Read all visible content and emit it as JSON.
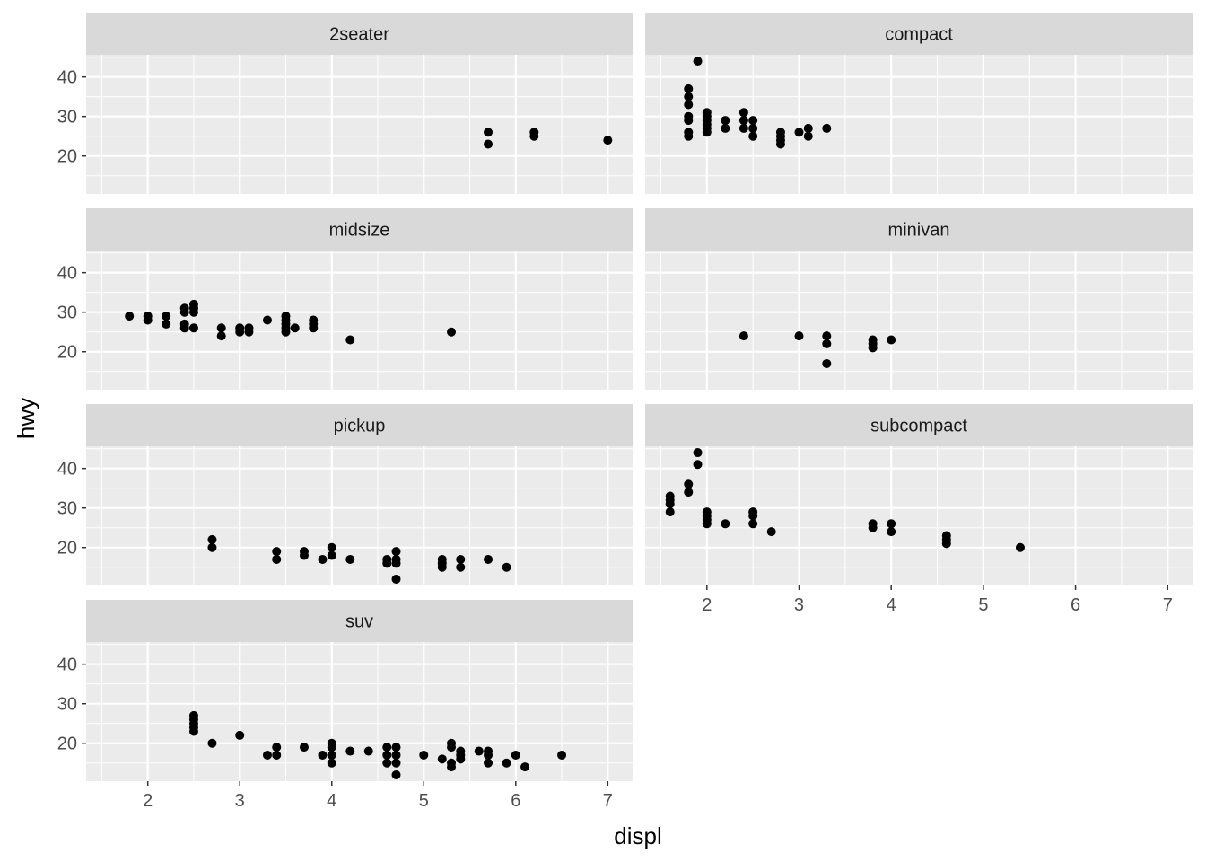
{
  "chart_data": {
    "type": "scatter",
    "xlabel": "displ",
    "ylabel": "hwy",
    "xlim": [
      1.33,
      7.27
    ],
    "ylim": [
      10.4,
      45.6
    ],
    "x_ticks": [
      2,
      3,
      4,
      5,
      6,
      7
    ],
    "y_ticks": [
      20,
      30,
      40
    ],
    "grid": true,
    "colors": {
      "panel_background": "#ebebeb",
      "strip_background": "#d9d9d9",
      "grid": "#ffffff",
      "point": "#000000"
    },
    "facets": [
      {
        "name": "2seater",
        "points": [
          [
            5.7,
            26
          ],
          [
            5.7,
            23
          ],
          [
            6.2,
            26
          ],
          [
            6.2,
            25
          ],
          [
            7.0,
            24
          ]
        ]
      },
      {
        "name": "compact",
        "points": [
          [
            1.8,
            37
          ],
          [
            1.8,
            35
          ],
          [
            1.8,
            33
          ],
          [
            1.8,
            30
          ],
          [
            1.8,
            29
          ],
          [
            1.8,
            26
          ],
          [
            1.8,
            25
          ],
          [
            1.9,
            44
          ],
          [
            2.0,
            31
          ],
          [
            2.0,
            30
          ],
          [
            2.0,
            29
          ],
          [
            2.0,
            28
          ],
          [
            2.0,
            27
          ],
          [
            2.0,
            26
          ],
          [
            2.2,
            29
          ],
          [
            2.2,
            27
          ],
          [
            2.4,
            31
          ],
          [
            2.4,
            29
          ],
          [
            2.4,
            27
          ],
          [
            2.5,
            29
          ],
          [
            2.5,
            27
          ],
          [
            2.5,
            25
          ],
          [
            2.8,
            26
          ],
          [
            2.8,
            25
          ],
          [
            2.8,
            24
          ],
          [
            2.8,
            23
          ],
          [
            3.0,
            26
          ],
          [
            3.1,
            27
          ],
          [
            3.1,
            25
          ],
          [
            3.3,
            27
          ]
        ]
      },
      {
        "name": "midsize",
        "points": [
          [
            1.8,
            29
          ],
          [
            2.0,
            29
          ],
          [
            2.0,
            28
          ],
          [
            2.2,
            29
          ],
          [
            2.2,
            27
          ],
          [
            2.4,
            31
          ],
          [
            2.4,
            30
          ],
          [
            2.4,
            27
          ],
          [
            2.4,
            26
          ],
          [
            2.5,
            32
          ],
          [
            2.5,
            31
          ],
          [
            2.5,
            30
          ],
          [
            2.5,
            26
          ],
          [
            2.8,
            26
          ],
          [
            2.8,
            24
          ],
          [
            3.0,
            26
          ],
          [
            3.0,
            25
          ],
          [
            3.1,
            26
          ],
          [
            3.1,
            25
          ],
          [
            3.3,
            28
          ],
          [
            3.5,
            29
          ],
          [
            3.5,
            28
          ],
          [
            3.5,
            27
          ],
          [
            3.5,
            26
          ],
          [
            3.5,
            25
          ],
          [
            3.6,
            26
          ],
          [
            3.8,
            28
          ],
          [
            3.8,
            27
          ],
          [
            3.8,
            26
          ],
          [
            4.2,
            23
          ],
          [
            5.3,
            25
          ]
        ]
      },
      {
        "name": "minivan",
        "points": [
          [
            2.4,
            24
          ],
          [
            3.0,
            24
          ],
          [
            3.3,
            24
          ],
          [
            3.3,
            22
          ],
          [
            3.3,
            17
          ],
          [
            3.8,
            23
          ],
          [
            3.8,
            22
          ],
          [
            3.8,
            21
          ],
          [
            4.0,
            23
          ]
        ]
      },
      {
        "name": "pickup",
        "points": [
          [
            2.7,
            22
          ],
          [
            2.7,
            20
          ],
          [
            3.4,
            19
          ],
          [
            3.4,
            17
          ],
          [
            3.7,
            19
          ],
          [
            3.7,
            18
          ],
          [
            3.9,
            17
          ],
          [
            4.0,
            20
          ],
          [
            4.0,
            18
          ],
          [
            4.2,
            17
          ],
          [
            4.6,
            17
          ],
          [
            4.6,
            16
          ],
          [
            4.7,
            19
          ],
          [
            4.7,
            17
          ],
          [
            4.7,
            16
          ],
          [
            4.7,
            12
          ],
          [
            5.2,
            17
          ],
          [
            5.2,
            16
          ],
          [
            5.2,
            15
          ],
          [
            5.4,
            17
          ],
          [
            5.4,
            15
          ],
          [
            5.7,
            17
          ],
          [
            5.9,
            15
          ]
        ]
      },
      {
        "name": "subcompact",
        "points": [
          [
            1.6,
            33
          ],
          [
            1.6,
            32
          ],
          [
            1.6,
            31
          ],
          [
            1.6,
            29
          ],
          [
            1.8,
            36
          ],
          [
            1.8,
            34
          ],
          [
            1.9,
            44
          ],
          [
            1.9,
            41
          ],
          [
            2.0,
            29
          ],
          [
            2.0,
            28
          ],
          [
            2.0,
            27
          ],
          [
            2.0,
            26
          ],
          [
            2.2,
            26
          ],
          [
            2.5,
            29
          ],
          [
            2.5,
            28
          ],
          [
            2.5,
            26
          ],
          [
            2.7,
            24
          ],
          [
            3.8,
            26
          ],
          [
            3.8,
            25
          ],
          [
            4.0,
            26
          ],
          [
            4.0,
            24
          ],
          [
            4.6,
            23
          ],
          [
            4.6,
            22
          ],
          [
            4.6,
            21
          ],
          [
            5.4,
            20
          ]
        ]
      },
      {
        "name": "suv",
        "points": [
          [
            2.5,
            27
          ],
          [
            2.5,
            26
          ],
          [
            2.5,
            25
          ],
          [
            2.5,
            24
          ],
          [
            2.5,
            23
          ],
          [
            2.7,
            20
          ],
          [
            3.0,
            22
          ],
          [
            3.3,
            17
          ],
          [
            3.4,
            19
          ],
          [
            3.4,
            17
          ],
          [
            3.7,
            19
          ],
          [
            3.9,
            17
          ],
          [
            4.0,
            20
          ],
          [
            4.0,
            19
          ],
          [
            4.0,
            17
          ],
          [
            4.0,
            15
          ],
          [
            4.2,
            18
          ],
          [
            4.4,
            18
          ],
          [
            4.6,
            19
          ],
          [
            4.6,
            17
          ],
          [
            4.6,
            15
          ],
          [
            4.7,
            19
          ],
          [
            4.7,
            17
          ],
          [
            4.7,
            15
          ],
          [
            4.7,
            12
          ],
          [
            5.0,
            17
          ],
          [
            5.2,
            16
          ],
          [
            5.3,
            20
          ],
          [
            5.3,
            19
          ],
          [
            5.3,
            15
          ],
          [
            5.3,
            14
          ],
          [
            5.4,
            18
          ],
          [
            5.4,
            17
          ],
          [
            5.4,
            16
          ],
          [
            5.6,
            18
          ],
          [
            5.7,
            18
          ],
          [
            5.7,
            17
          ],
          [
            5.7,
            15
          ],
          [
            5.9,
            15
          ],
          [
            6.0,
            17
          ],
          [
            6.1,
            14
          ],
          [
            6.5,
            17
          ]
        ]
      }
    ]
  }
}
